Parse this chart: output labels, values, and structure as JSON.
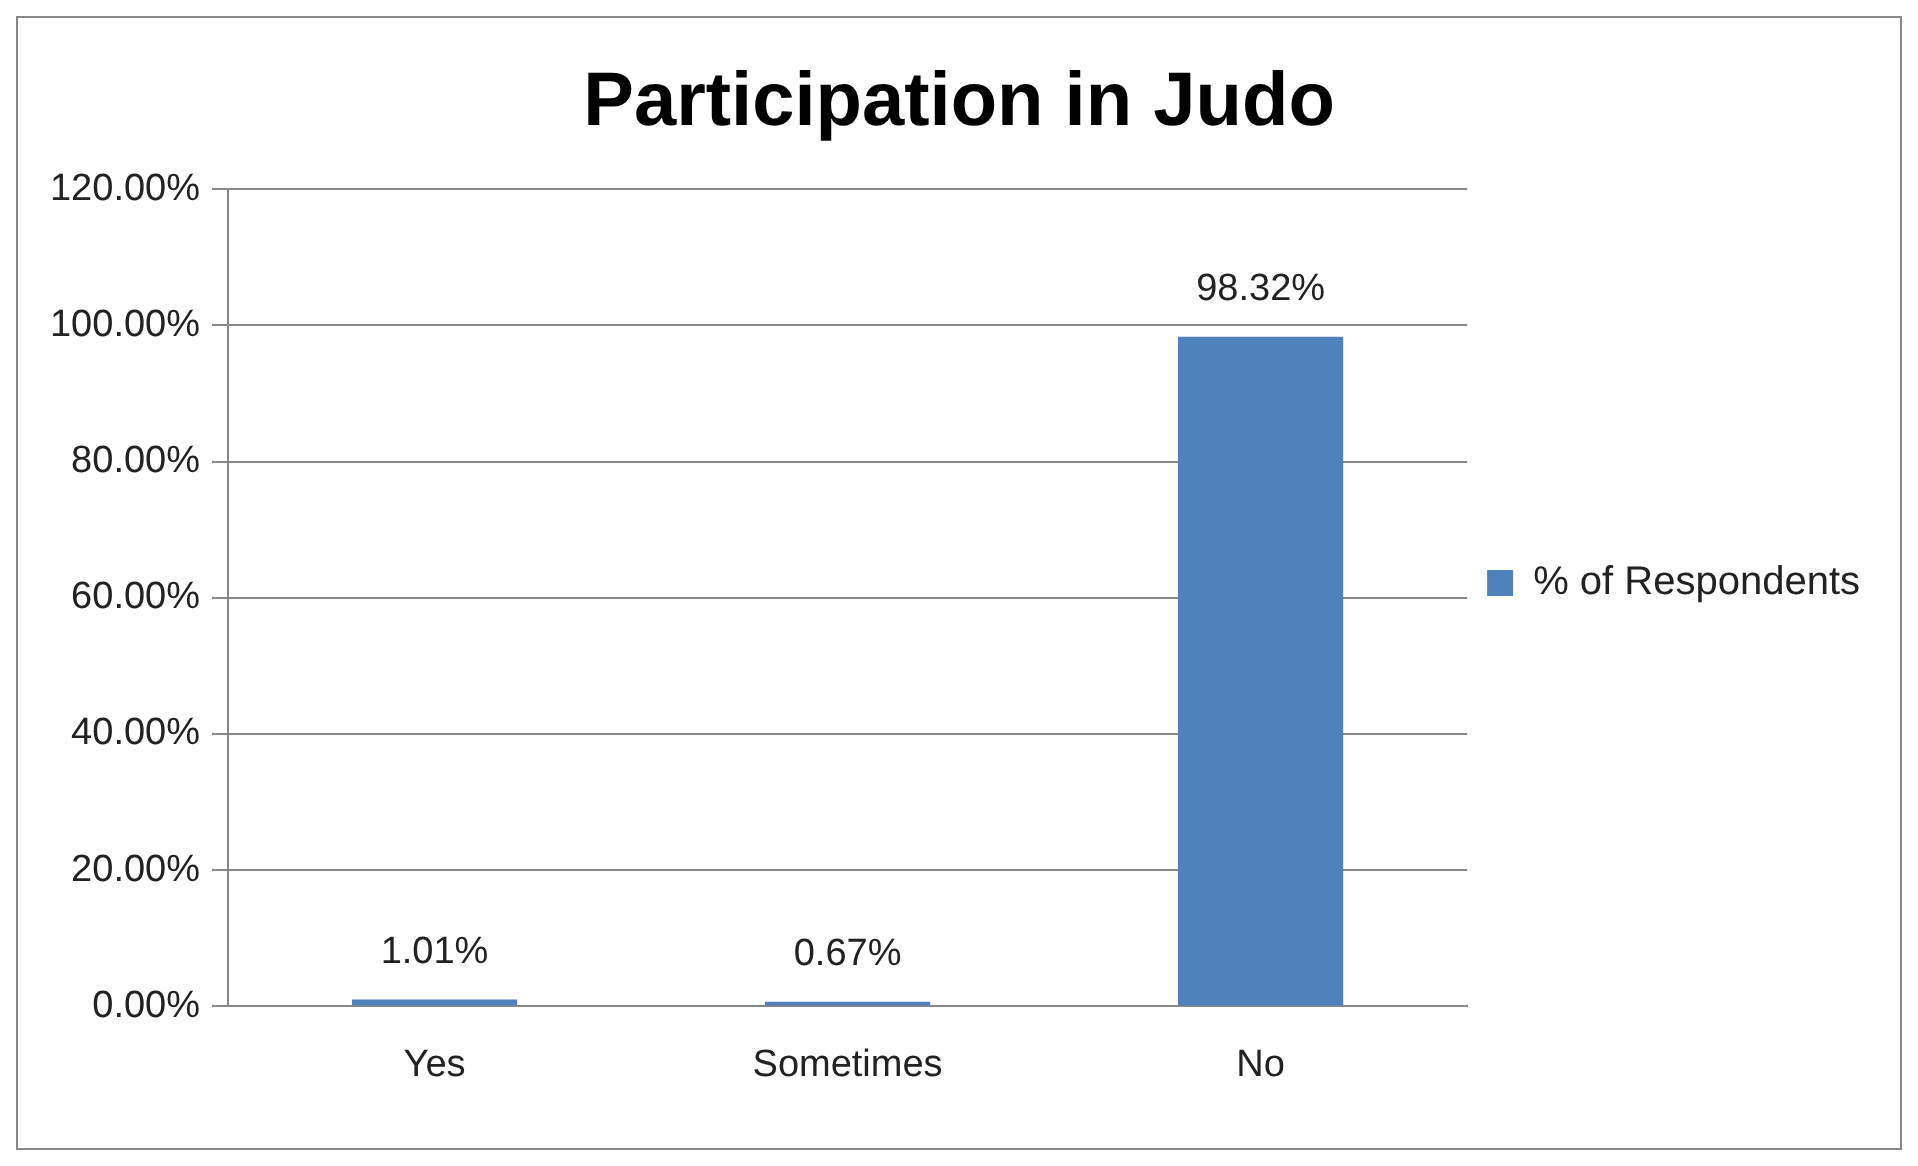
{
  "chart_data": {
    "type": "bar",
    "title": "Participation in Judo",
    "categories": [
      "Yes",
      "Sometimes",
      "No"
    ],
    "series": [
      {
        "name": "% of Respondents",
        "color": "#4f81bd",
        "values": [
          1.01,
          0.67,
          98.32
        ],
        "value_labels": [
          "1.01%",
          "0.67%",
          "98.32%"
        ]
      }
    ],
    "ylim": [
      0,
      120
    ],
    "yticks": [
      {
        "value": 0,
        "label": "0.00%"
      },
      {
        "value": 20,
        "label": "20.00%"
      },
      {
        "value": 40,
        "label": "40.00%"
      },
      {
        "value": 60,
        "label": "60.00%"
      },
      {
        "value": 80,
        "label": "80.00%"
      },
      {
        "value": 100,
        "label": "100.00%"
      },
      {
        "value": 120,
        "label": "120.00%"
      }
    ],
    "grid": "y",
    "legend": "right"
  }
}
